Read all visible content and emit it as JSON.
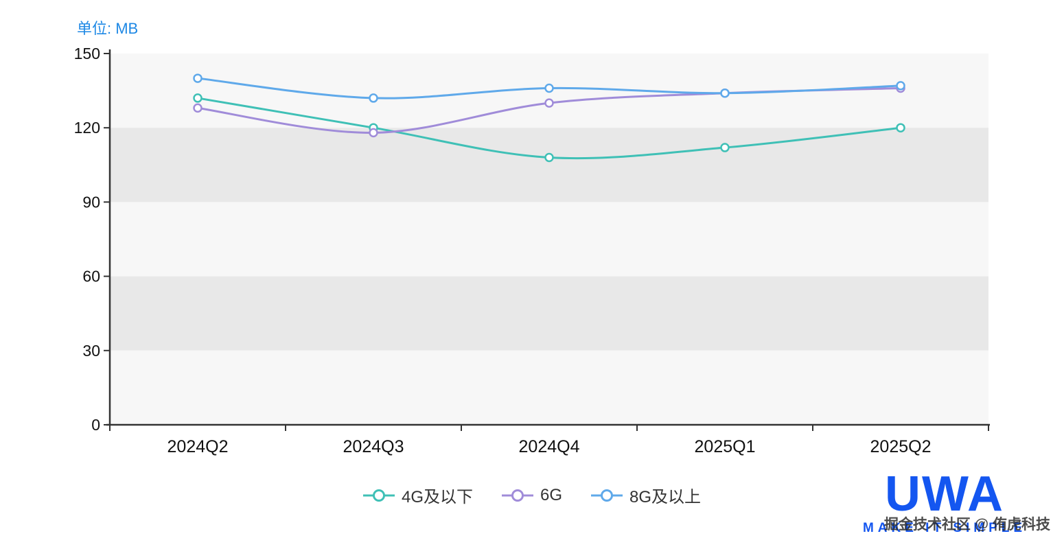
{
  "unit_label": "单位: MB",
  "watermark": "掘金技术社区 @ 侑虎科技",
  "logo": {
    "text": "UWA",
    "tagline": "MAKE IT SIMPLE",
    "color": "#1456f0"
  },
  "chart_data": {
    "type": "line",
    "smooth": true,
    "categories": [
      "2024Q2",
      "2024Q3",
      "2024Q4",
      "2025Q1",
      "2025Q2"
    ],
    "series": [
      {
        "name": "4G及以下",
        "color": "#3fc0b6",
        "values": [
          132,
          120,
          108,
          112,
          120
        ]
      },
      {
        "name": "6G",
        "color": "#a08cd9",
        "values": [
          128,
          118,
          130,
          134,
          136
        ]
      },
      {
        "name": "8G及以上",
        "color": "#5fa9ea",
        "values": [
          140,
          132,
          136,
          134,
          137
        ]
      }
    ],
    "ylabel": "MB",
    "ylim": [
      0,
      150
    ],
    "yticks": [
      0,
      30,
      60,
      90,
      120,
      150
    ],
    "axis_color": "#333333",
    "label_color": "#111111",
    "split_area": {
      "light": "#f7f7f7",
      "dark": "#e8e8e8"
    },
    "legend_position": "bottom",
    "grid": false
  }
}
